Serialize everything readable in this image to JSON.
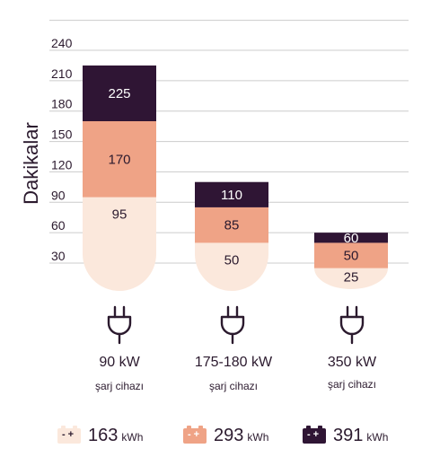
{
  "chart_data": {
    "type": "bar",
    "ylabel": "Dakikalar",
    "yticks": [
      30,
      60,
      90,
      120,
      150,
      180,
      210,
      240
    ],
    "ylim": [
      0,
      240
    ],
    "categories": [
      {
        "power": "90 kW",
        "sub": "şarj cihazı"
      },
      {
        "power": "175-180 kW",
        "sub": "şarj cihazı"
      },
      {
        "power": "350 kW",
        "sub": "şarj cihazı"
      }
    ],
    "series": [
      {
        "name": "163 kWh",
        "values": [
          95,
          50,
          25
        ]
      },
      {
        "name": "293 kWh",
        "values": [
          170,
          85,
          50
        ]
      },
      {
        "name": "391 kWh",
        "values": [
          225,
          110,
          60
        ]
      }
    ],
    "legend_position": "bottom"
  },
  "legend": [
    {
      "value": "163",
      "unit": "kWh"
    },
    {
      "value": "293",
      "unit": "kWh"
    },
    {
      "value": "391",
      "unit": "kWh"
    }
  ],
  "colors": {
    "light": "#fbe8dc",
    "mid": "#efa386",
    "dark": "#2f1534",
    "grid": "#cccccc",
    "text": "#2b1a2e"
  },
  "icons": [
    "plug-icon",
    "battery-icon"
  ]
}
